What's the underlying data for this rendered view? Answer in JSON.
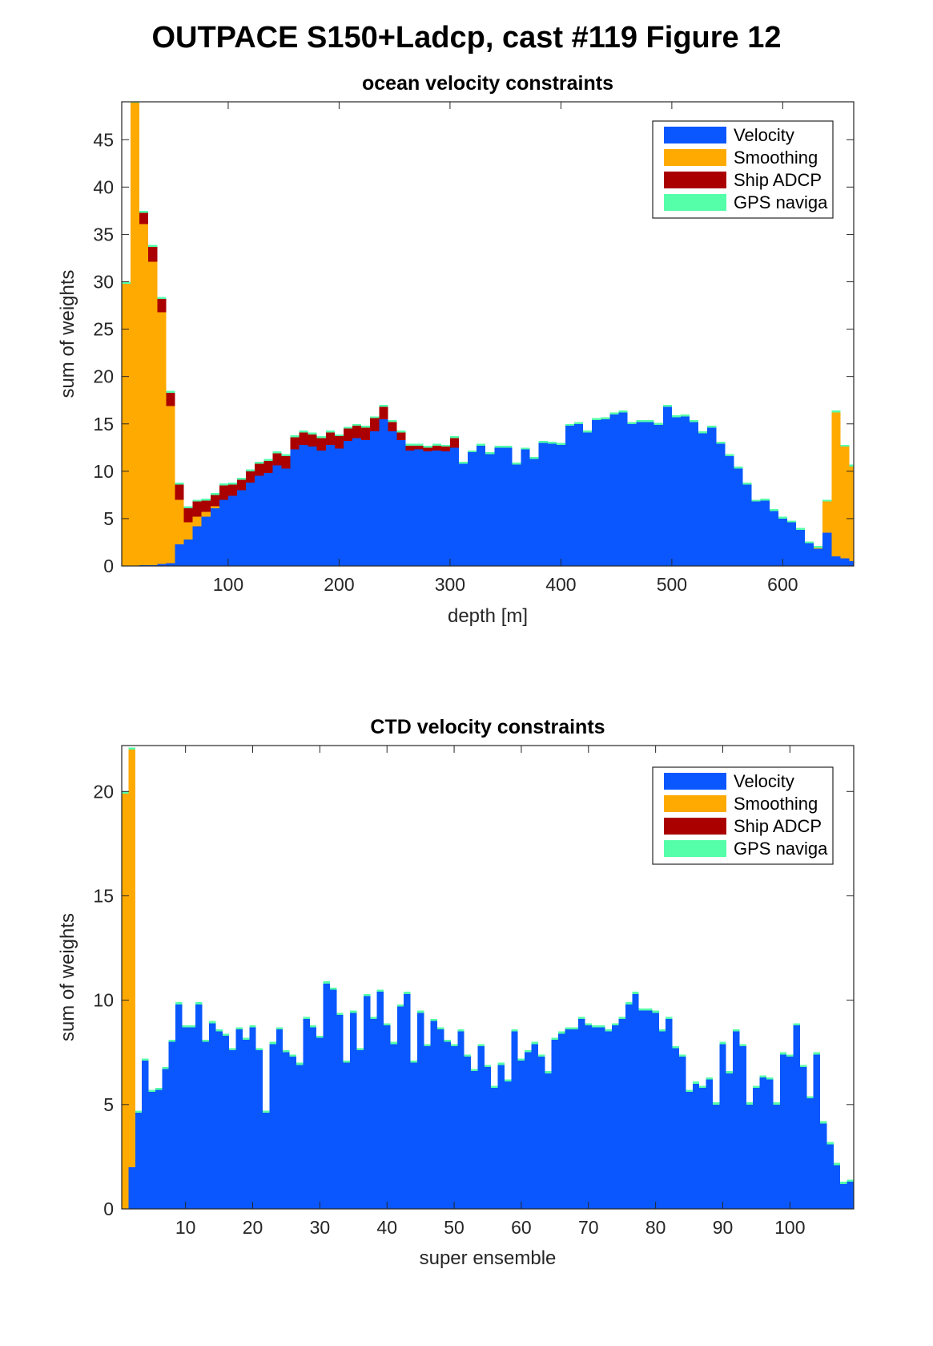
{
  "figure_title": "OUTPACE S150+Ladcp, cast #119  Figure 12",
  "colors": {
    "Velocity": "#0a57ff",
    "Smoothing": "#ffaa00",
    "Ship ADCP": "#aa0000",
    "GPS naviga": "#55ffaa"
  },
  "chart_data": [
    {
      "type": "bar",
      "stacked": true,
      "title": "ocean velocity constraints",
      "xlabel": "depth [m]",
      "ylabel": "sum of weights",
      "xlim": [
        4,
        664
      ],
      "ylim": [
        0,
        49
      ],
      "xticks": [
        100,
        200,
        300,
        400,
        500,
        600
      ],
      "yticks": [
        0,
        5,
        10,
        15,
        20,
        25,
        30,
        35,
        40,
        45
      ],
      "bin_width": 8,
      "grid": false,
      "legend": "top-right",
      "x": [
        8,
        16,
        24,
        32,
        40,
        48,
        56,
        64,
        72,
        80,
        88,
        96,
        104,
        112,
        120,
        128,
        136,
        144,
        152,
        160,
        168,
        176,
        184,
        192,
        200,
        208,
        216,
        224,
        232,
        240,
        248,
        256,
        264,
        272,
        280,
        288,
        296,
        304,
        312,
        320,
        328,
        336,
        344,
        352,
        360,
        368,
        376,
        384,
        392,
        400,
        408,
        416,
        424,
        432,
        440,
        448,
        456,
        464,
        472,
        480,
        488,
        496,
        504,
        512,
        520,
        528,
        536,
        544,
        552,
        560,
        568,
        576,
        584,
        592,
        600,
        608,
        616,
        624,
        632,
        640,
        648,
        656,
        664
      ],
      "series": [
        {
          "name": "Velocity",
          "values": [
            0,
            0,
            0.1,
            0.1,
            0.2,
            0.3,
            2.3,
            2.8,
            4.2,
            5.2,
            6.1,
            7.0,
            7.4,
            8.0,
            8.8,
            9.5,
            9.8,
            10.6,
            10.3,
            12.3,
            12.8,
            12.6,
            12.2,
            12.8,
            12.4,
            13.2,
            13.5,
            13.3,
            14.2,
            15.5,
            14.2,
            13.3,
            12.2,
            12.3,
            12.1,
            12.2,
            12.1,
            12.5,
            10.8,
            12.0,
            12.7,
            11.8,
            12.5,
            12.5,
            10.7,
            12.3,
            11.3,
            13.0,
            12.9,
            12.8,
            14.8,
            15.0,
            14.1,
            15.4,
            15.5,
            16.0,
            16.2,
            15.0,
            15.2,
            15.2,
            14.9,
            16.8,
            15.7,
            15.8,
            15.2,
            14.0,
            14.6,
            12.9,
            11.6,
            10.3,
            8.6,
            6.8,
            6.9,
            5.8,
            5.0,
            4.6,
            3.8,
            2.4,
            1.8,
            3.5,
            1.0,
            0.8,
            0.5
          ]
        },
        {
          "name": "Smoothing",
          "values": [
            29.8,
            48.9,
            36.0,
            32.0,
            26.6,
            16.6,
            4.7,
            1.8,
            1.0,
            0.5,
            0.2,
            0,
            0,
            0,
            0,
            0,
            0,
            0,
            0,
            0,
            0,
            0,
            0,
            0,
            0,
            0,
            0,
            0,
            0,
            0,
            0,
            0,
            0,
            0,
            0,
            0,
            0,
            0,
            0,
            0,
            0,
            0,
            0,
            0,
            0,
            0,
            0,
            0,
            0,
            0,
            0,
            0,
            0,
            0,
            0,
            0,
            0,
            0,
            0,
            0,
            0,
            0,
            0,
            0,
            0,
            0,
            0,
            0,
            0,
            0,
            0,
            0,
            0,
            0,
            0,
            0,
            0,
            0,
            0.1,
            3.3,
            15.2,
            11.8,
            10
          ]
        },
        {
          "name": "Ship ADCP",
          "values": [
            0,
            0,
            1.2,
            1.6,
            1.4,
            1.4,
            1.6,
            1.5,
            1.6,
            1.2,
            1.2,
            1.5,
            1.2,
            1.1,
            1.2,
            1.3,
            1.3,
            1.3,
            1.3,
            1.3,
            1.3,
            1.3,
            1.3,
            1.3,
            1.3,
            1.3,
            1.3,
            1.3,
            1.4,
            1.3,
            1.0,
            0.8,
            0.5,
            0.4,
            0.4,
            0.5,
            0.5,
            1.0,
            0,
            0,
            0,
            0,
            0,
            0,
            0,
            0,
            0,
            0,
            0,
            0,
            0,
            0,
            0,
            0,
            0,
            0,
            0,
            0,
            0,
            0,
            0,
            0,
            0,
            0,
            0,
            0,
            0,
            0,
            0,
            0,
            0,
            0,
            0,
            0,
            0,
            0,
            0,
            0,
            0,
            0,
            0,
            0,
            0
          ]
        },
        {
          "name": "GPS naviga",
          "values": [
            0.2,
            0.2,
            0.2,
            0.2,
            0.2,
            0.2,
            0.2,
            0.2,
            0.2,
            0.2,
            0.2,
            0.2,
            0.2,
            0.2,
            0.2,
            0.2,
            0.2,
            0.2,
            0.2,
            0.2,
            0.2,
            0.2,
            0.2,
            0.2,
            0.2,
            0.2,
            0.2,
            0.2,
            0.2,
            0.2,
            0.2,
            0.2,
            0.2,
            0.2,
            0.2,
            0.2,
            0.2,
            0.2,
            0.2,
            0.2,
            0.2,
            0.2,
            0.2,
            0.2,
            0.2,
            0.2,
            0.2,
            0.2,
            0.2,
            0.2,
            0.2,
            0.2,
            0.2,
            0.2,
            0.2,
            0.2,
            0.2,
            0.2,
            0.2,
            0.2,
            0.2,
            0.2,
            0.2,
            0.2,
            0.2,
            0.2,
            0.2,
            0.2,
            0.2,
            0.2,
            0.2,
            0.2,
            0.2,
            0.2,
            0.2,
            0.2,
            0.2,
            0.2,
            0.2,
            0.2,
            0.2,
            0.2,
            0.2
          ]
        }
      ]
    },
    {
      "type": "bar",
      "stacked": true,
      "title": "CTD velocity constraints",
      "xlabel": "super ensemble",
      "ylabel": "sum of weights",
      "xlim": [
        0.5,
        109.5
      ],
      "ylim": [
        0,
        22.2
      ],
      "xticks": [
        10,
        20,
        30,
        40,
        50,
        60,
        70,
        80,
        90,
        100
      ],
      "yticks": [
        0,
        5,
        10,
        15,
        20
      ],
      "bin_width": 1,
      "grid": false,
      "legend": "top-right",
      "x": [
        1,
        2,
        3,
        4,
        5,
        6,
        7,
        8,
        9,
        10,
        11,
        12,
        13,
        14,
        15,
        16,
        17,
        18,
        19,
        20,
        21,
        22,
        23,
        24,
        25,
        26,
        27,
        28,
        29,
        30,
        31,
        32,
        33,
        34,
        35,
        36,
        37,
        38,
        39,
        40,
        41,
        42,
        43,
        44,
        45,
        46,
        47,
        48,
        49,
        50,
        51,
        52,
        53,
        54,
        55,
        56,
        57,
        58,
        59,
        60,
        61,
        62,
        63,
        64,
        65,
        66,
        67,
        68,
        69,
        70,
        71,
        72,
        73,
        74,
        75,
        76,
        77,
        78,
        79,
        80,
        81,
        82,
        83,
        84,
        85,
        86,
        87,
        88,
        89,
        90,
        91,
        92,
        93,
        94,
        95,
        96,
        97,
        98,
        99,
        100,
        101,
        102,
        103,
        104,
        105,
        106,
        107,
        108,
        109
      ],
      "series": [
        {
          "name": "Velocity",
          "values": [
            0,
            2.0,
            4.6,
            7.1,
            5.6,
            5.7,
            6.7,
            8.0,
            9.8,
            8.7,
            8.7,
            9.8,
            8.0,
            8.9,
            8.5,
            8.3,
            7.6,
            8.6,
            8.1,
            8.7,
            7.6,
            4.6,
            7.9,
            8.6,
            7.5,
            7.3,
            6.9,
            9.1,
            8.7,
            8.2,
            10.8,
            10.5,
            9.3,
            7.0,
            9.4,
            7.6,
            10.2,
            9.1,
            10.4,
            8.8,
            7.9,
            9.7,
            10.3,
            7.0,
            9.4,
            7.8,
            9.0,
            8.6,
            8.0,
            7.8,
            8.5,
            7.3,
            6.6,
            7.8,
            6.8,
            5.8,
            6.9,
            6.1,
            8.5,
            7.1,
            7.5,
            7.9,
            7.3,
            6.5,
            8.1,
            8.4,
            8.6,
            8.6,
            9.1,
            8.8,
            8.7,
            8.7,
            8.5,
            8.8,
            9.1,
            9.8,
            10.3,
            9.5,
            9.5,
            9.4,
            8.5,
            9.1,
            7.7,
            7.3,
            5.6,
            6.0,
            5.8,
            6.2,
            5.0,
            7.9,
            6.5,
            8.5,
            7.8,
            5.0,
            5.8,
            6.3,
            6.2,
            5.0,
            7.4,
            7.3,
            8.8,
            6.8,
            5.3,
            7.4,
            4.1,
            3.1,
            2.1,
            1.2,
            1.3
          ]
        },
        {
          "name": "Smoothing",
          "values": [
            19.9,
            20.0,
            0,
            0,
            0,
            0,
            0,
            0,
            0,
            0,
            0,
            0,
            0,
            0,
            0,
            0,
            0,
            0,
            0,
            0,
            0,
            0,
            0,
            0,
            0,
            0,
            0,
            0,
            0,
            0,
            0,
            0,
            0,
            0,
            0,
            0,
            0,
            0,
            0,
            0,
            0,
            0,
            0,
            0,
            0,
            0,
            0,
            0,
            0,
            0,
            0,
            0,
            0,
            0,
            0,
            0,
            0,
            0,
            0,
            0,
            0,
            0,
            0,
            0,
            0,
            0,
            0,
            0,
            0,
            0,
            0,
            0,
            0,
            0,
            0,
            0,
            0,
            0,
            0,
            0,
            0,
            0,
            0,
            0,
            0,
            0,
            0,
            0,
            0,
            0,
            0,
            0,
            0,
            0,
            0,
            0,
            0,
            0,
            0,
            0,
            0,
            0,
            0,
            0,
            0,
            0,
            0,
            0,
            0
          ]
        },
        {
          "name": "Ship ADCP",
          "values": [
            0,
            0,
            0,
            0,
            0,
            0,
            0,
            0,
            0,
            0,
            0,
            0,
            0,
            0,
            0,
            0,
            0,
            0,
            0,
            0,
            0,
            0,
            0,
            0,
            0,
            0,
            0,
            0,
            0,
            0,
            0,
            0,
            0,
            0,
            0,
            0,
            0,
            0,
            0,
            0,
            0,
            0,
            0,
            0,
            0,
            0,
            0,
            0,
            0,
            0,
            0,
            0,
            0,
            0,
            0,
            0,
            0,
            0,
            0,
            0,
            0,
            0,
            0,
            0,
            0,
            0,
            0,
            0,
            0,
            0,
            0,
            0,
            0,
            0,
            0,
            0,
            0,
            0,
            0,
            0,
            0,
            0,
            0,
            0,
            0,
            0,
            0,
            0,
            0,
            0,
            0,
            0,
            0,
            0,
            0,
            0,
            0,
            0,
            0,
            0,
            0,
            0,
            0,
            0,
            0,
            0,
            0,
            0,
            0
          ]
        },
        {
          "name": "GPS naviga",
          "values": [
            0.1,
            0.1,
            0.1,
            0.1,
            0.1,
            0.1,
            0.1,
            0.1,
            0.1,
            0.1,
            0.1,
            0.1,
            0.1,
            0.1,
            0.1,
            0.1,
            0.1,
            0.1,
            0.1,
            0.1,
            0.1,
            0.1,
            0.1,
            0.1,
            0.1,
            0.1,
            0.1,
            0.1,
            0.1,
            0.1,
            0.1,
            0.1,
            0.1,
            0.1,
            0.1,
            0.1,
            0.1,
            0.1,
            0.1,
            0.1,
            0.1,
            0.1,
            0.1,
            0.1,
            0.1,
            0.1,
            0.1,
            0.1,
            0.1,
            0.1,
            0.1,
            0.1,
            0.1,
            0.1,
            0.1,
            0.1,
            0.1,
            0.1,
            0.1,
            0.1,
            0.1,
            0.1,
            0.1,
            0.1,
            0.1,
            0.1,
            0.1,
            0.1,
            0.1,
            0.1,
            0.1,
            0.1,
            0.1,
            0.1,
            0.1,
            0.1,
            0.1,
            0.1,
            0.1,
            0.1,
            0.1,
            0.1,
            0.1,
            0.1,
            0.1,
            0.1,
            0.1,
            0.1,
            0.1,
            0.1,
            0.1,
            0.1,
            0.1,
            0.1,
            0.1,
            0.1,
            0.1,
            0.1,
            0.1,
            0.1,
            0.1,
            0.1,
            0.1,
            0.1,
            0.1,
            0.1,
            0.1,
            0.1,
            0.1
          ]
        }
      ]
    }
  ]
}
